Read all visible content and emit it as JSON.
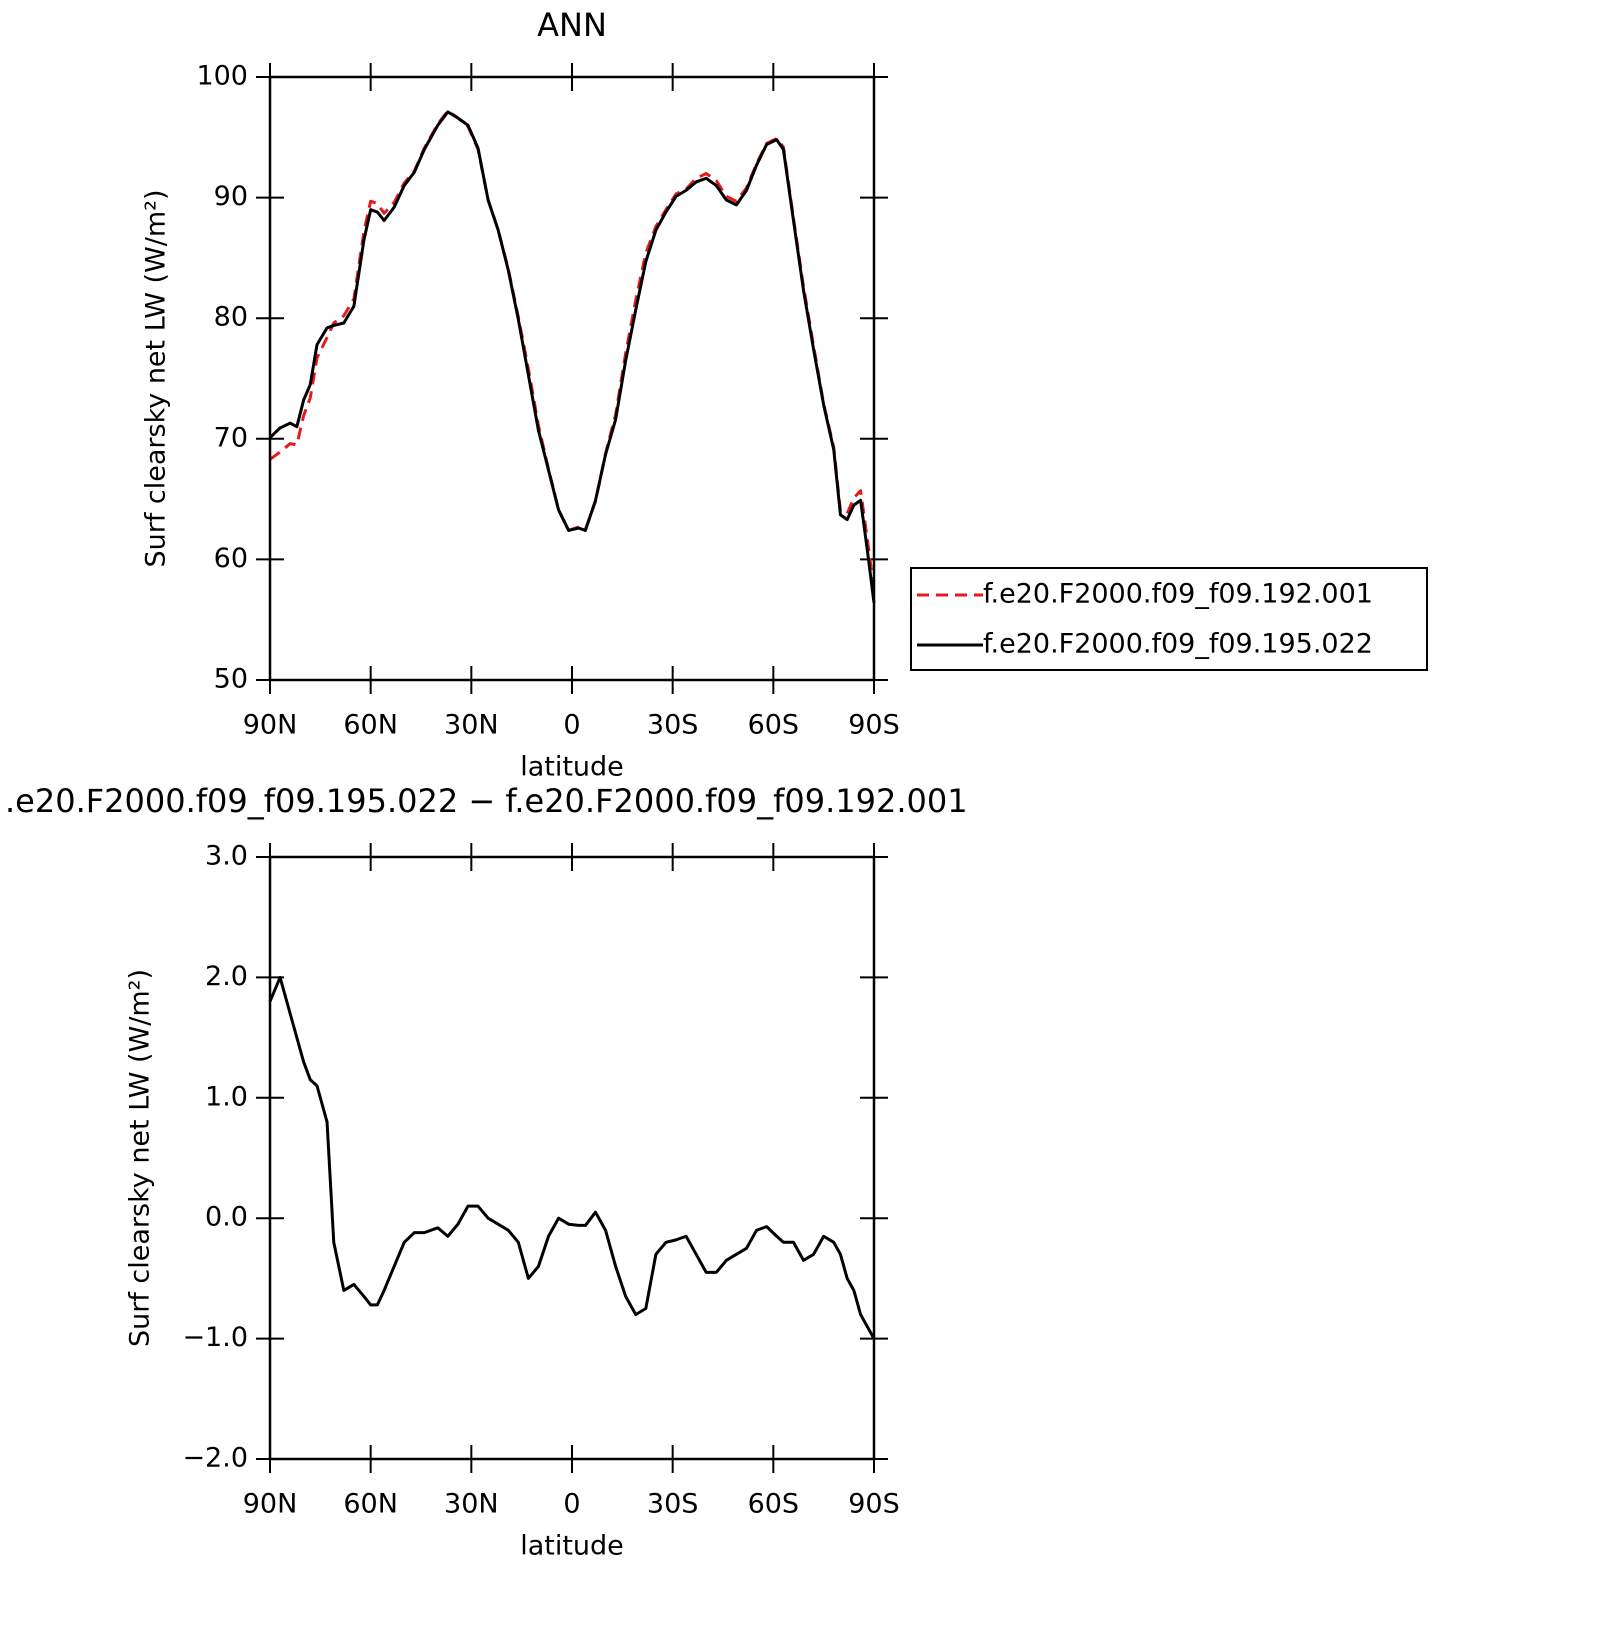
{
  "chart_data": [
    {
      "type": "line",
      "title": "ANN",
      "xlabel": "latitude",
      "ylabel": "Surf clearsky net LW (W/m²)",
      "x": [
        90,
        87,
        84,
        82,
        80,
        78,
        76,
        73,
        71,
        68,
        65,
        62,
        60,
        58,
        56,
        53,
        50,
        47,
        44,
        40,
        37,
        34,
        31,
        28,
        25,
        22,
        19,
        16,
        13,
        10,
        7,
        4,
        1,
        -2,
        -4,
        -7,
        -10,
        -13,
        -16,
        -19,
        -22,
        -25,
        -28,
        -31,
        -34,
        -37,
        -40,
        -43,
        -46,
        -49,
        -52,
        -55,
        -58,
        -61,
        -63,
        -66,
        -69,
        -72,
        -75,
        -78,
        -80,
        -82,
        -84,
        -86,
        -88,
        -90
      ],
      "series": [
        {
          "name": "f.e20.F2000.f09_f09.192.001",
          "color": "#e41a1c",
          "dash": true,
          "values": [
            68.3,
            68.9,
            69.6,
            69.5,
            71.9,
            73.4,
            76.7,
            78.4,
            79.6,
            80.2,
            81.6,
            87.2,
            89.7,
            89.5,
            88.7,
            89.6,
            91.2,
            92.2,
            94.1,
            96.1,
            97.2,
            96.6,
            95.9,
            94.0,
            89.8,
            87.3,
            84.1,
            80.1,
            75.8,
            71.1,
            67.5,
            64.1,
            62.4,
            62.7,
            62.5,
            64.8,
            68.8,
            72.0,
            77.1,
            81.5,
            85.4,
            87.6,
            89.0,
            90.3,
            90.7,
            91.6,
            92.0,
            91.4,
            90.1,
            89.7,
            90.8,
            92.8,
            94.5,
            94.9,
            94.2,
            88.3,
            82.6,
            77.7,
            72.9,
            69.3,
            64.0,
            63.8,
            65.1,
            65.7,
            61.7,
            57.4
          ]
        },
        {
          "name": "f.e20.F2000.f09_f09.195.022",
          "color": "#000000",
          "dash": false,
          "values": [
            70.1,
            70.9,
            71.3,
            71.0,
            73.2,
            74.5,
            77.8,
            79.2,
            79.4,
            79.6,
            81.0,
            86.5,
            89.0,
            88.8,
            88.1,
            89.2,
            91.0,
            92.1,
            94.0,
            96.0,
            97.1,
            96.6,
            96.0,
            94.1,
            89.8,
            87.3,
            84.0,
            79.9,
            75.3,
            70.7,
            67.4,
            64.1,
            62.4,
            62.6,
            62.4,
            64.9,
            68.7,
            71.6,
            76.5,
            80.7,
            84.7,
            87.3,
            88.8,
            90.1,
            90.6,
            91.3,
            91.6,
            91.0,
            89.8,
            89.4,
            90.6,
            92.7,
            94.4,
            94.8,
            94.0,
            88.1,
            82.3,
            77.4,
            72.8,
            69.1,
            63.7,
            63.3,
            64.5,
            64.9,
            60.8,
            56.4
          ]
        }
      ],
      "xlim": [
        90,
        -90
      ],
      "xticks": [
        {
          "value": 90,
          "label": "90N"
        },
        {
          "value": 60,
          "label": "60N"
        },
        {
          "value": 30,
          "label": "30N"
        },
        0,
        {
          "value": -30,
          "label": "30S"
        },
        {
          "value": -60,
          "label": "60S"
        },
        {
          "value": -90,
          "label": "90S"
        }
      ],
      "ylim": [
        50,
        100
      ],
      "yticks": [
        50,
        60,
        70,
        80,
        90,
        100
      ],
      "legend": "right"
    },
    {
      "type": "line",
      "title": ".e20.F2000.f09_f09.195.022 − f.e20.F2000.f09_f09.192.001",
      "xlabel": "latitude",
      "ylabel": "Surf clearsky net LW (W/m²)",
      "x": [
        90,
        87,
        84,
        82,
        80,
        78,
        76,
        73,
        71,
        68,
        65,
        62,
        60,
        58,
        56,
        53,
        50,
        47,
        44,
        40,
        37,
        34,
        31,
        28,
        25,
        22,
        19,
        16,
        13,
        10,
        7,
        4,
        1,
        -2,
        -4,
        -7,
        -10,
        -13,
        -16,
        -19,
        -22,
        -25,
        -28,
        -31,
        -34,
        -37,
        -40,
        -43,
        -46,
        -49,
        -52,
        -55,
        -58,
        -61,
        -63,
        -66,
        -69,
        -72,
        -75,
        -78,
        -80,
        -82,
        -84,
        -86,
        -88,
        -90
      ],
      "series": [
        {
          "color": "#000000",
          "dash": false,
          "values": [
            1.8,
            2.0,
            1.7,
            1.5,
            1.3,
            1.15,
            1.1,
            0.8,
            -0.2,
            -0.6,
            -0.55,
            -0.65,
            -0.72,
            -0.72,
            -0.6,
            -0.4,
            -0.2,
            -0.12,
            -0.12,
            -0.08,
            -0.15,
            -0.05,
            0.1,
            0.1,
            0.0,
            -0.05,
            -0.1,
            -0.2,
            -0.5,
            -0.4,
            -0.15,
            0.0,
            -0.05,
            -0.06,
            -0.06,
            0.05,
            -0.1,
            -0.4,
            -0.65,
            -0.8,
            -0.75,
            -0.3,
            -0.2,
            -0.18,
            -0.15,
            -0.3,
            -0.45,
            -0.45,
            -0.35,
            -0.3,
            -0.25,
            -0.1,
            -0.07,
            -0.15,
            -0.2,
            -0.2,
            -0.35,
            -0.3,
            -0.15,
            -0.2,
            -0.3,
            -0.5,
            -0.6,
            -0.8,
            -0.9,
            -1.0
          ]
        }
      ],
      "xlim": [
        90,
        -90
      ],
      "xticks": [
        {
          "value": 90,
          "label": "90N"
        },
        {
          "value": 60,
          "label": "60N"
        },
        {
          "value": 30,
          "label": "30N"
        },
        0,
        {
          "value": -30,
          "label": "30S"
        },
        {
          "value": -60,
          "label": "60S"
        },
        {
          "value": -90,
          "label": "90S"
        }
      ],
      "ylim": [
        -2,
        3
      ],
      "yticks": [
        {
          "value": -2,
          "label": "−2.0"
        },
        {
          "value": -1,
          "label": "−1.0"
        },
        {
          "value": 0,
          "label": "0.0"
        },
        {
          "value": 1,
          "label": "1.0"
        },
        {
          "value": 2,
          "label": "2.0"
        },
        {
          "value": 3,
          "label": "3.0"
        }
      ]
    }
  ]
}
